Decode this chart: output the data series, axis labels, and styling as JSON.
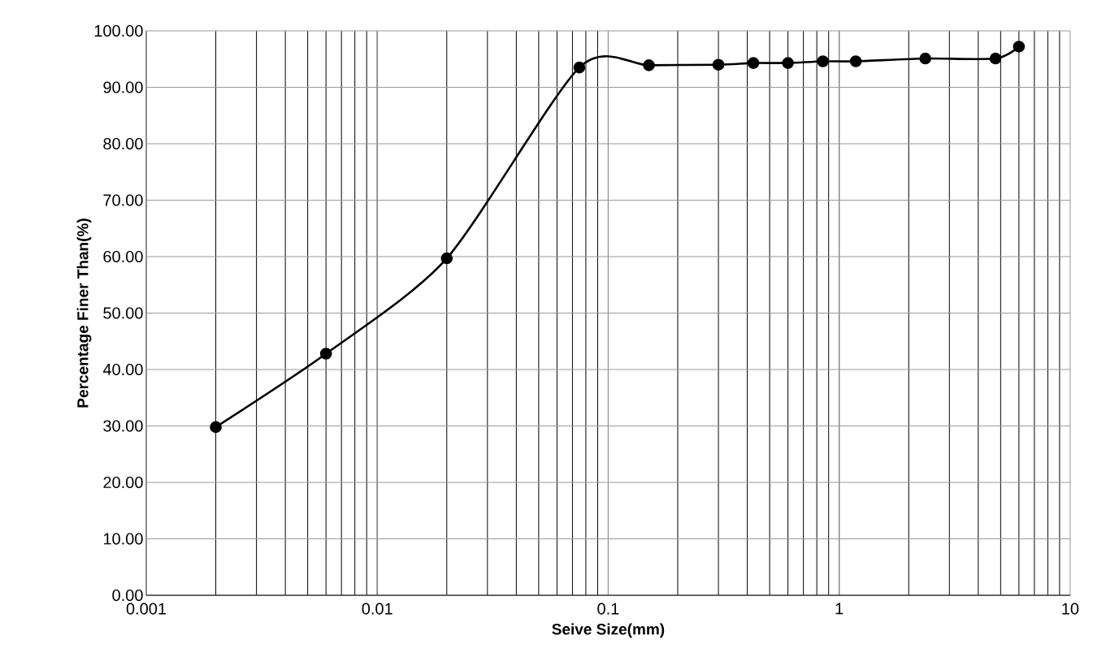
{
  "chart_data": {
    "type": "line",
    "xlabel": "Seive Size(mm)",
    "ylabel": "Percentage Finer Than(%)",
    "log": "x",
    "grid": true,
    "marker": "circle",
    "line_style": "solid",
    "xlim": [
      0.001,
      10
    ],
    "xticks": [
      0.001,
      0.01,
      0.1,
      1,
      10
    ],
    "ylim": [
      0,
      100
    ],
    "yticks": [
      {
        "value": 0,
        "label": "0.00"
      },
      {
        "value": 10,
        "label": "10.00"
      },
      {
        "value": 20,
        "label": "20.00"
      },
      {
        "value": 30,
        "label": "30.00"
      },
      {
        "value": 40,
        "label": "40.00"
      },
      {
        "value": 50,
        "label": "50.00"
      },
      {
        "value": 60,
        "label": "60.00"
      },
      {
        "value": 70,
        "label": "70.00"
      },
      {
        "value": 80,
        "label": "80.00"
      },
      {
        "value": 90,
        "label": "90.00"
      },
      {
        "value": 100,
        "label": "100.00"
      }
    ],
    "x": [
      0.002,
      0.006,
      0.02,
      0.075,
      0.15,
      0.3,
      0.425,
      0.6,
      0.85,
      1.18,
      2.36,
      4.75,
      6
    ],
    "series": [
      {
        "color": "#000000",
        "values": [
          29.8,
          42.8,
          59.7,
          93.5,
          93.9,
          94.0,
          94.3,
          94.3,
          94.6,
          94.6,
          95.1,
          95.1,
          97.2
        ]
      }
    ]
  }
}
